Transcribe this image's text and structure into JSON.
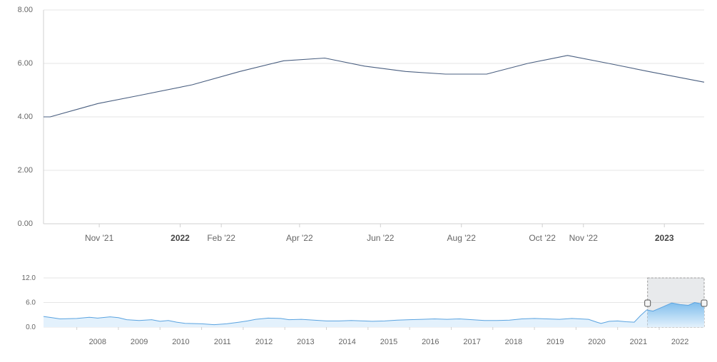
{
  "chart_data": [
    {
      "type": "line",
      "role": "main",
      "title": "",
      "xlabel": "",
      "ylabel": "",
      "ylim": [
        0,
        8
      ],
      "xlim": [
        "2021-09-20",
        "2023-01-31"
      ],
      "y_ticks": [
        "0.00",
        "2.00",
        "4.00",
        "6.00",
        "8.00"
      ],
      "y_tick_values": [
        0,
        2,
        4,
        6,
        8
      ],
      "grid": true,
      "line_color": "#4a5f80",
      "x_ticks": [
        {
          "label": "Nov '21",
          "date": "2021-11-01",
          "bold": false
        },
        {
          "label": "2022",
          "date": "2022-01-01",
          "bold": true
        },
        {
          "label": "Feb '22",
          "date": "2022-02-01",
          "bold": false
        },
        {
          "label": "Apr '22",
          "date": "2022-04-01",
          "bold": false
        },
        {
          "label": "Jun '22",
          "date": "2022-06-01",
          "bold": false
        },
        {
          "label": "Aug '22",
          "date": "2022-08-01",
          "bold": false
        },
        {
          "label": "Oct '22",
          "date": "2022-10-01",
          "bold": false
        },
        {
          "label": "Nov '22",
          "date": "2022-11-01",
          "bold": false
        },
        {
          "label": "2023",
          "date": "2023-01-01",
          "bold": true
        }
      ],
      "series": [
        {
          "points": [
            [
              "2021-09-20",
              4.0
            ],
            [
              "2021-09-25",
              4.0
            ],
            [
              "2021-10-31",
              4.5
            ],
            [
              "2021-12-01",
              4.8
            ],
            [
              "2022-01-10",
              5.2
            ],
            [
              "2022-02-15",
              5.7
            ],
            [
              "2022-03-20",
              6.1
            ],
            [
              "2022-04-20",
              6.2
            ],
            [
              "2022-05-20",
              5.9
            ],
            [
              "2022-06-20",
              5.7
            ],
            [
              "2022-07-20",
              5.6
            ],
            [
              "2022-08-20",
              5.6
            ],
            [
              "2022-09-20",
              6.0
            ],
            [
              "2022-10-20",
              6.3
            ],
            [
              "2022-11-20",
              6.0
            ],
            [
              "2022-12-20",
              5.7
            ],
            [
              "2023-01-31",
              5.3
            ]
          ]
        }
      ]
    },
    {
      "type": "area",
      "role": "navigator",
      "ylim": [
        0,
        12
      ],
      "y_ticks": [
        "0.0",
        "6.0",
        "12.0"
      ],
      "y_tick_values": [
        0,
        6,
        12
      ],
      "xlim": [
        2007.2,
        2023.08
      ],
      "x_ticks": [
        "2008",
        "2009",
        "2010",
        "2011",
        "2012",
        "2013",
        "2014",
        "2015",
        "2016",
        "2017",
        "2018",
        "2019",
        "2020",
        "2021",
        "2022"
      ],
      "line_color": "#5aa3e0",
      "fill_top_color": "#7fbdec",
      "fill_bottom_color": "#e3f1fc",
      "selection_range": [
        2021.72,
        2023.08
      ],
      "series": [
        {
          "points": [
            [
              2007.2,
              2.6
            ],
            [
              2007.4,
              2.3
            ],
            [
              2007.6,
              2.0
            ],
            [
              2008.0,
              2.1
            ],
            [
              2008.3,
              2.4
            ],
            [
              2008.5,
              2.2
            ],
            [
              2008.8,
              2.5
            ],
            [
              2009.0,
              2.3
            ],
            [
              2009.2,
              1.8
            ],
            [
              2009.5,
              1.6
            ],
            [
              2009.8,
              1.8
            ],
            [
              2010.0,
              1.4
            ],
            [
              2010.2,
              1.6
            ],
            [
              2010.4,
              1.2
            ],
            [
              2010.6,
              0.9
            ],
            [
              2011.0,
              0.8
            ],
            [
              2011.3,
              0.6
            ],
            [
              2011.6,
              0.8
            ],
            [
              2011.9,
              1.2
            ],
            [
              2012.1,
              1.5
            ],
            [
              2012.3,
              1.9
            ],
            [
              2012.6,
              2.2
            ],
            [
              2012.9,
              2.1
            ],
            [
              2013.1,
              1.8
            ],
            [
              2013.4,
              1.9
            ],
            [
              2013.7,
              1.7
            ],
            [
              2014.0,
              1.5
            ],
            [
              2014.3,
              1.5
            ],
            [
              2014.6,
              1.6
            ],
            [
              2014.9,
              1.5
            ],
            [
              2015.1,
              1.4
            ],
            [
              2015.4,
              1.5
            ],
            [
              2015.7,
              1.7
            ],
            [
              2016.0,
              1.8
            ],
            [
              2016.3,
              1.9
            ],
            [
              2016.6,
              2.0
            ],
            [
              2016.9,
              1.9
            ],
            [
              2017.2,
              2.0
            ],
            [
              2017.5,
              1.8
            ],
            [
              2017.8,
              1.6
            ],
            [
              2018.1,
              1.6
            ],
            [
              2018.4,
              1.7
            ],
            [
              2018.7,
              2.0
            ],
            [
              2019.0,
              2.1
            ],
            [
              2019.3,
              2.0
            ],
            [
              2019.6,
              1.9
            ],
            [
              2019.9,
              2.1
            ],
            [
              2020.1,
              2.0
            ],
            [
              2020.3,
              1.9
            ],
            [
              2020.5,
              1.2
            ],
            [
              2020.6,
              0.9
            ],
            [
              2020.8,
              1.4
            ],
            [
              2021.0,
              1.5
            ],
            [
              2021.2,
              1.3
            ],
            [
              2021.4,
              1.2
            ],
            [
              2021.55,
              2.8
            ],
            [
              2021.7,
              4.2
            ],
            [
              2021.85,
              3.9
            ],
            [
              2022.1,
              5.0
            ],
            [
              2022.3,
              5.9
            ],
            [
              2022.5,
              5.5
            ],
            [
              2022.7,
              5.3
            ],
            [
              2022.85,
              6.0
            ],
            [
              2023.0,
              5.7
            ],
            [
              2023.08,
              5.2
            ]
          ]
        }
      ]
    }
  ]
}
